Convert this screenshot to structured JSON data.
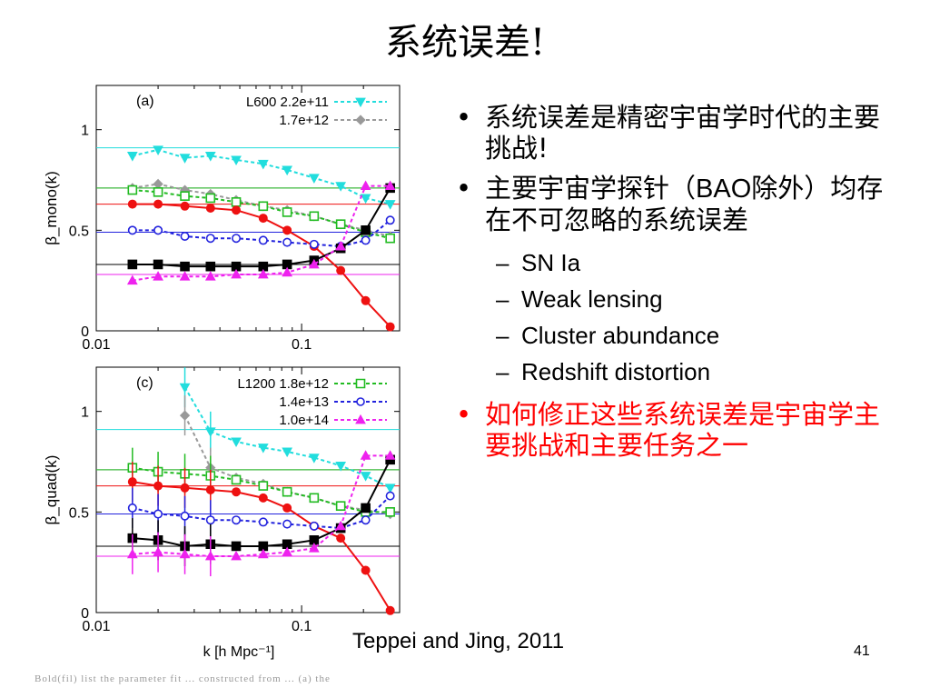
{
  "slide": {
    "title": "系统误差!",
    "bullets": [
      {
        "text": "系统误差是精密宇宙学时代的主要挑战!",
        "color": "#000000"
      },
      {
        "text_parts": [
          "主要宇宙学探针（",
          "BAO",
          "除外）均存在不可忽略的系统误差"
        ],
        "color": "#000000"
      },
      {
        "text": "如何修正这些系统误差是宇宙学主要挑战和主要任务之一",
        "color": "#ff0000"
      }
    ],
    "sub_bullets": [
      "SN Ia",
      "Weak lensing",
      "Cluster abundance",
      "Redshift distortion"
    ],
    "citation": "Teppei and Jing, 2011",
    "page_number": "41",
    "caption_fragment": "Bold(fil) list the parameter fit ... constructed from ... (a) the"
  },
  "chart_data": [
    {
      "type": "line",
      "panel_label": "(a)",
      "ylabel": "β_mono(k)",
      "xscale": "log",
      "xlim": [
        0.01,
        0.3
      ],
      "ylim": [
        0,
        1.22
      ],
      "xticks": [
        "0.01",
        "0.1"
      ],
      "yticks": [
        "0",
        "0.5",
        "1"
      ],
      "x": [
        0.015,
        0.02,
        0.027,
        0.036,
        0.048,
        0.065,
        0.085,
        0.115,
        0.155,
        0.205,
        0.27
      ],
      "legend": [
        "L600 2.2e+11",
        "1.7e+12"
      ],
      "series": [
        {
          "name": "L600 2.2e+11",
          "color": "#22dddd",
          "marker": "triangle-down",
          "values": [
            0.87,
            0.9,
            0.86,
            0.87,
            0.85,
            0.83,
            0.8,
            0.76,
            0.72,
            0.66,
            0.63
          ],
          "reference": 0.91
        },
        {
          "name": "1.7e+12",
          "color": "#999999",
          "marker": "diamond",
          "values": [
            0.71,
            0.73,
            0.7,
            0.68,
            0.65,
            0.62,
            0.6,
            0.57,
            0.53,
            0.5,
            0.47
          ],
          "reference": 0.71
        },
        {
          "color": "#22bb22",
          "marker": "square",
          "values": [
            0.7,
            0.69,
            0.67,
            0.66,
            0.64,
            0.62,
            0.59,
            0.57,
            0.53,
            0.49,
            0.46
          ],
          "reference": 0.71
        },
        {
          "color": "#ee1111",
          "marker": "circle",
          "values": [
            0.63,
            0.63,
            0.62,
            0.61,
            0.6,
            0.56,
            0.5,
            0.42,
            0.3,
            0.15,
            0.02
          ],
          "reference": 0.63
        },
        {
          "color": "#2222dd",
          "marker": "open-circle",
          "values": [
            0.5,
            0.5,
            0.47,
            0.46,
            0.46,
            0.45,
            0.44,
            0.43,
            0.42,
            0.45,
            0.55
          ],
          "reference": 0.49
        },
        {
          "color": "#000000",
          "marker": "square",
          "values": [
            0.33,
            0.33,
            0.32,
            0.32,
            0.32,
            0.32,
            0.33,
            0.35,
            0.41,
            0.5,
            0.71
          ],
          "reference": 0.33
        },
        {
          "color": "#ee22ee",
          "marker": "triangle-up",
          "values": [
            0.25,
            0.27,
            0.27,
            0.27,
            0.28,
            0.28,
            0.29,
            0.33,
            0.42,
            0.72,
            0.72
          ],
          "reference": 0.28
        }
      ]
    },
    {
      "type": "line",
      "panel_label": "(c)",
      "ylabel": "β_quad(k)",
      "xlabel": "k [h Mpc⁻¹]",
      "xscale": "log",
      "xlim": [
        0.01,
        0.3
      ],
      "ylim": [
        0,
        1.22
      ],
      "xticks": [
        "0.01",
        "0.1"
      ],
      "yticks": [
        "0",
        "0.5",
        "1"
      ],
      "x": [
        0.015,
        0.02,
        0.027,
        0.036,
        0.048,
        0.065,
        0.085,
        0.115,
        0.155,
        0.205,
        0.27
      ],
      "legend": [
        "L1200 1.8e+12",
        "1.4e+13",
        "1.0e+14"
      ],
      "series": [
        {
          "color": "#22dddd",
          "marker": "triangle-down",
          "values": [
            null,
            null,
            1.12,
            0.9,
            0.85,
            0.82,
            0.8,
            0.77,
            0.73,
            0.68,
            0.62
          ],
          "reference": 0.91
        },
        {
          "color": "#999999",
          "marker": "diamond",
          "values": [
            null,
            null,
            0.98,
            0.72,
            0.67,
            0.64,
            0.6,
            0.57,
            0.53,
            0.51,
            0.49
          ],
          "reference": 0.71
        },
        {
          "name": "L1200 1.8e+12",
          "color": "#22bb22",
          "marker": "square",
          "values": [
            0.72,
            0.7,
            0.69,
            0.68,
            0.66,
            0.63,
            0.6,
            0.57,
            0.53,
            0.5,
            0.5
          ],
          "reference": 0.71
        },
        {
          "color": "#ee1111",
          "marker": "circle",
          "values": [
            0.65,
            0.63,
            0.62,
            0.61,
            0.6,
            0.57,
            0.52,
            0.43,
            0.37,
            0.21,
            0.01
          ],
          "reference": 0.63
        },
        {
          "name": "1.4e+13",
          "color": "#2222dd",
          "marker": "open-circle",
          "values": [
            0.52,
            0.49,
            0.48,
            0.46,
            0.46,
            0.45,
            0.44,
            0.43,
            0.42,
            0.46,
            0.58
          ],
          "reference": 0.49
        },
        {
          "color": "#000000",
          "marker": "square",
          "values": [
            0.37,
            0.36,
            0.33,
            0.34,
            0.33,
            0.33,
            0.34,
            0.36,
            0.42,
            0.52,
            0.76
          ],
          "reference": 0.33
        },
        {
          "name": "1.0e+14",
          "color": "#ee22ee",
          "marker": "triangle-up",
          "values": [
            0.29,
            0.3,
            0.29,
            0.28,
            0.28,
            0.29,
            0.3,
            0.32,
            0.43,
            0.78,
            0.78
          ],
          "reference": 0.28
        }
      ]
    }
  ]
}
